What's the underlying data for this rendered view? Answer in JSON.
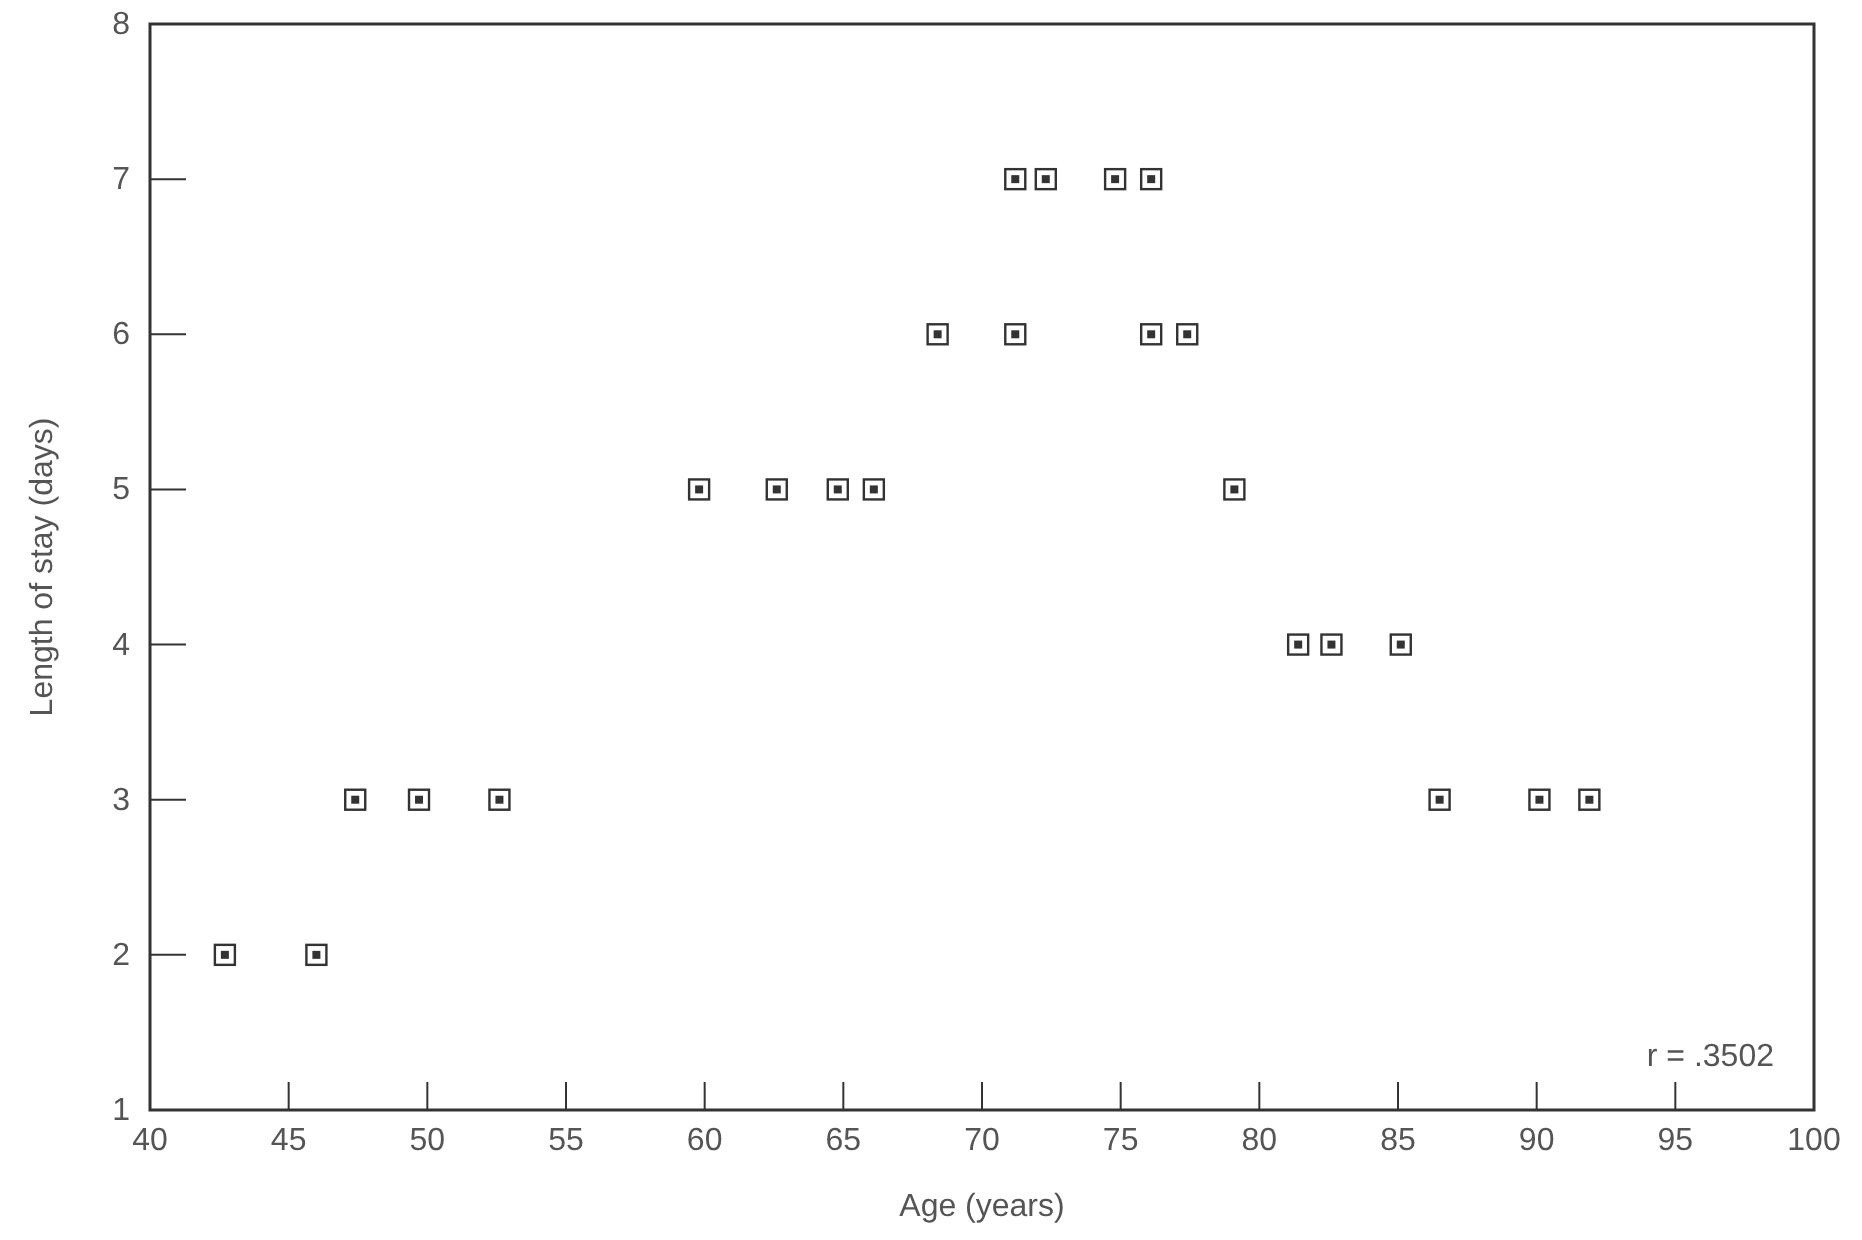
{
  "chart_data": {
    "type": "scatter",
    "xlabel": "Age (years)",
    "ylabel": "Length of stay (days)",
    "x": [
      42.7,
      46.0,
      47.4,
      49.7,
      52.6,
      59.8,
      62.6,
      64.8,
      66.1,
      68.4,
      71.2,
      71.2,
      72.3,
      74.8,
      76.1,
      76.1,
      77.4,
      79.1,
      81.4,
      82.6,
      85.1,
      86.5,
      90.1,
      91.9
    ],
    "values": [
      2,
      2,
      3,
      3,
      3,
      5,
      5,
      5,
      5,
      6,
      7,
      6,
      7,
      7,
      7,
      6,
      6,
      5,
      4,
      4,
      4,
      3,
      3,
      3
    ],
    "color": "#333333",
    "marker": "square",
    "xlim": [
      40,
      100
    ],
    "xticks": [
      40,
      45,
      50,
      55,
      60,
      65,
      70,
      75,
      80,
      85,
      90,
      95,
      100
    ],
    "ylim": [
      1,
      8
    ],
    "yticks": [
      1,
      2,
      3,
      4,
      5,
      6,
      7,
      8
    ],
    "grid": false,
    "annotations": [
      "r = .3502"
    ]
  }
}
